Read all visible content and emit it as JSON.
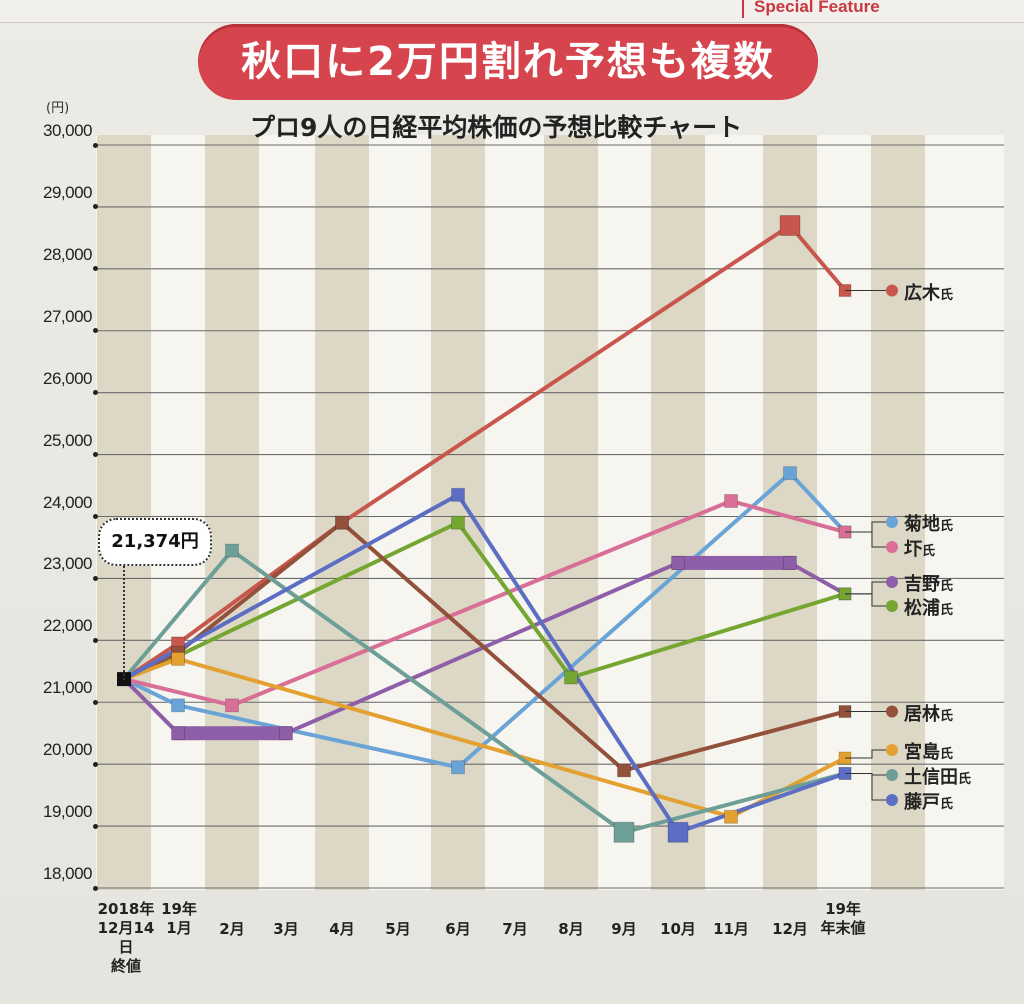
{
  "header": {
    "feature_label": "Special Feature",
    "banner": "秋口に2万円割れ予想も複数",
    "subtitle": "プロ9人の日経平均株価の予想比較チャート"
  },
  "chart_data": {
    "type": "line",
    "unit_label": "(円)",
    "ylim": [
      18000,
      30000
    ],
    "yticks": [
      "30,000",
      "29,000",
      "28,000",
      "27,000",
      "26,000",
      "25,000",
      "24,000",
      "23,000",
      "22,000",
      "21,000",
      "20,000",
      "19,000",
      "18,000"
    ],
    "categories": [
      "2018年\n12月14日\n終値",
      "19年\n1月",
      "2月",
      "3月",
      "4月",
      "5月",
      "6月",
      "7月",
      "8月",
      "9月",
      "10月",
      "11月",
      "12月",
      "19年\n年末値"
    ],
    "start_value": 21374,
    "start_label": "21,374円",
    "series": [
      {
        "name": "広木",
        "color": "#c8564c",
        "points": [
          [
            0,
            21374
          ],
          [
            1,
            21950
          ],
          [
            4,
            23900
          ],
          [
            12,
            28700
          ],
          [
            13,
            27650
          ]
        ]
      },
      {
        "name": "菊地",
        "color": "#6aa4d6",
        "points": [
          [
            0,
            21374
          ],
          [
            1,
            20950
          ],
          [
            6,
            19950
          ],
          [
            12,
            24700
          ],
          [
            13,
            23750
          ]
        ]
      },
      {
        "name": "圷",
        "color": "#d96f97",
        "points": [
          [
            0,
            21374
          ],
          [
            2,
            20950
          ],
          [
            11,
            24250
          ],
          [
            13,
            23750
          ]
        ]
      },
      {
        "name": "吉野",
        "color": "#8e5fa8",
        "points": [
          [
            0,
            21374
          ],
          [
            1,
            20500
          ],
          [
            3,
            20500
          ],
          [
            10,
            23250
          ],
          [
            12,
            23250
          ],
          [
            13,
            22750
          ]
        ],
        "plateaus": [
          [
            1,
            3,
            20500
          ],
          [
            10,
            12,
            23250
          ]
        ]
      },
      {
        "name": "松浦",
        "color": "#74a631",
        "points": [
          [
            0,
            21374
          ],
          [
            1,
            21750
          ],
          [
            6,
            23900
          ],
          [
            8,
            21400
          ],
          [
            13,
            22750
          ]
        ]
      },
      {
        "name": "居林",
        "color": "#93503b",
        "points": [
          [
            0,
            21374
          ],
          [
            1,
            21800
          ],
          [
            4,
            23900
          ],
          [
            9,
            19900
          ],
          [
            13,
            20850
          ]
        ]
      },
      {
        "name": "宮島",
        "color": "#e4a030",
        "points": [
          [
            0,
            21374
          ],
          [
            1,
            21700
          ],
          [
            11,
            19150
          ],
          [
            13,
            20100
          ]
        ]
      },
      {
        "name": "土信田",
        "color": "#6d9f97",
        "points": [
          [
            0,
            21374
          ],
          [
            2,
            23450
          ],
          [
            9,
            18900
          ],
          [
            13,
            19850
          ]
        ]
      },
      {
        "name": "藤戸",
        "color": "#5c6ec4",
        "points": [
          [
            0,
            21374
          ],
          [
            6,
            24350
          ],
          [
            10,
            18900
          ],
          [
            13,
            19850
          ]
        ]
      }
    ],
    "legend": [
      "広木氏",
      "菊地氏",
      "圷氏",
      "吉野氏",
      "松浦氏",
      "居林氏",
      "宮島氏",
      "土信田氏",
      "藤戸氏"
    ],
    "legend_suffix": "氏",
    "grid": true,
    "legend_position": "right"
  }
}
